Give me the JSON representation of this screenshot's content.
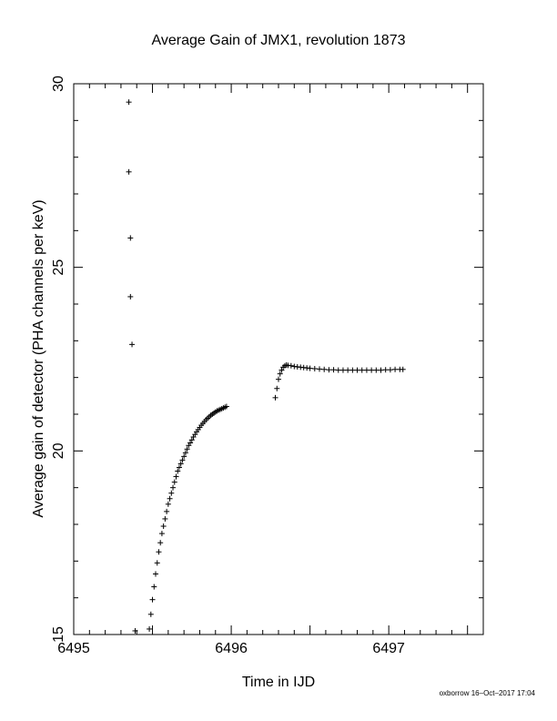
{
  "chart_data": {
    "type": "scatter",
    "title": "Average Gain of JMX1, revolution 1873",
    "xlabel": "Time in IJD",
    "ylabel": "Average gain of detector (PHA channels per keV)",
    "xlim": [
      6495,
      6497.6
    ],
    "ylim": [
      15,
      30
    ],
    "x_ticks": [
      "6495",
      "6496",
      "6497"
    ],
    "y_ticks": [
      "15",
      "20",
      "25",
      "30"
    ],
    "grid": false,
    "marker": "+",
    "series": [
      {
        "x": [
          6495.35,
          6495.35,
          6495.36,
          6495.36,
          6495.37,
          6495.39
        ],
        "y": [
          29.5,
          27.6,
          25.8,
          24.2,
          22.9,
          15.1
        ]
      },
      {
        "x": [
          6495.48,
          6495.49,
          6495.5,
          6495.51,
          6495.52,
          6495.53,
          6495.54,
          6495.55,
          6495.56,
          6495.57,
          6495.58,
          6495.59,
          6495.6,
          6495.61,
          6495.62,
          6495.63,
          6495.64,
          6495.65,
          6495.66,
          6495.67,
          6495.68,
          6495.69,
          6495.7,
          6495.71,
          6495.72,
          6495.73,
          6495.74,
          6495.75,
          6495.76,
          6495.77,
          6495.78,
          6495.79,
          6495.8,
          6495.81,
          6495.82,
          6495.83,
          6495.84,
          6495.85,
          6495.86,
          6495.87,
          6495.88,
          6495.89,
          6495.9,
          6495.91,
          6495.92,
          6495.93,
          6495.94,
          6495.95,
          6495.96,
          6495.97
        ],
        "y": [
          15.15,
          15.55,
          15.95,
          16.3,
          16.65,
          16.95,
          17.25,
          17.5,
          17.75,
          17.95,
          18.15,
          18.35,
          18.55,
          18.7,
          18.85,
          19.0,
          19.15,
          19.3,
          19.45,
          19.55,
          19.65,
          19.75,
          19.85,
          19.95,
          20.05,
          20.15,
          20.22,
          20.3,
          20.38,
          20.45,
          20.52,
          20.58,
          20.64,
          20.7,
          20.75,
          20.8,
          20.85,
          20.89,
          20.93,
          20.97,
          21.0,
          21.03,
          21.06,
          21.09,
          21.11,
          21.13,
          21.15,
          21.17,
          21.19,
          21.21
        ]
      },
      {
        "x": [
          6496.28,
          6496.29,
          6496.3,
          6496.31,
          6496.32,
          6496.33,
          6496.34,
          6496.35,
          6496.36,
          6496.38,
          6496.4,
          6496.42,
          6496.44,
          6496.46,
          6496.48,
          6496.5,
          6496.53,
          6496.56,
          6496.59,
          6496.62,
          6496.65,
          6496.68,
          6496.71,
          6496.74,
          6496.77,
          6496.8,
          6496.83,
          6496.86,
          6496.89,
          6496.92,
          6496.95,
          6496.98,
          6497.01,
          6497.04,
          6497.07,
          6497.09
        ],
        "y": [
          21.45,
          21.7,
          21.95,
          22.1,
          22.2,
          22.28,
          22.32,
          22.34,
          22.33,
          22.32,
          22.3,
          22.29,
          22.28,
          22.27,
          22.26,
          22.25,
          22.24,
          22.23,
          22.22,
          22.21,
          22.21,
          22.2,
          22.2,
          22.2,
          22.2,
          22.2,
          22.2,
          22.2,
          22.2,
          22.2,
          22.2,
          22.21,
          22.21,
          22.22,
          22.22,
          22.22
        ]
      }
    ]
  },
  "footer": "oxborrow 16–Oct–2017 17:04"
}
